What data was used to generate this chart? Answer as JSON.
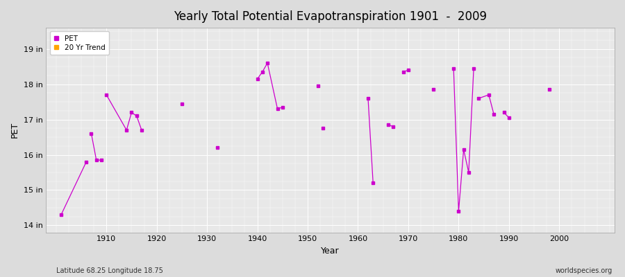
{
  "title": "Yearly Total Potential Evapotranspiration 1901  -  2009",
  "xlabel": "Year",
  "ylabel": "PET",
  "subtitle_left": "Latitude 68.25 Longitude 18.75",
  "subtitle_right": "worldspecies.org",
  "ylim": [
    13.8,
    19.6
  ],
  "xlim": [
    1898,
    2011
  ],
  "yticks": [
    14,
    15,
    16,
    17,
    18,
    19
  ],
  "ytick_labels": [
    "14 in",
    "15 in",
    "16 in",
    "17 in",
    "18 in",
    "19 in"
  ],
  "xticks": [
    1910,
    1920,
    1930,
    1940,
    1950,
    1960,
    1970,
    1980,
    1990,
    2000
  ],
  "pet_color": "#CC00CC",
  "trend_color": "#FFA500",
  "fig_bg_color": "#DCDCDC",
  "plot_bg_color": "#E8E8E8",
  "grid_major_color": "#FFFFFF",
  "grid_minor_color": "#FFFFFF",
  "pet_data": [
    [
      1901,
      14.3
    ],
    [
      1906,
      15.8
    ],
    [
      1907,
      16.6
    ],
    [
      1908,
      15.85
    ],
    [
      1909,
      15.85
    ],
    [
      1910,
      17.7
    ],
    [
      1914,
      16.7
    ],
    [
      1915,
      17.2
    ],
    [
      1916,
      17.1
    ],
    [
      1917,
      16.7
    ],
    [
      1925,
      17.45
    ],
    [
      1932,
      16.2
    ],
    [
      1940,
      18.15
    ],
    [
      1941,
      18.35
    ],
    [
      1942,
      18.6
    ],
    [
      1944,
      17.3
    ],
    [
      1945,
      17.35
    ],
    [
      1952,
      17.95
    ],
    [
      1953,
      16.75
    ],
    [
      1962,
      17.6
    ],
    [
      1963,
      15.2
    ],
    [
      1966,
      16.85
    ],
    [
      1967,
      16.8
    ],
    [
      1969,
      18.35
    ],
    [
      1970,
      18.4
    ],
    [
      1975,
      17.85
    ],
    [
      1979,
      18.45
    ],
    [
      1980,
      14.4
    ],
    [
      1981,
      16.15
    ],
    [
      1982,
      15.5
    ],
    [
      1983,
      18.45
    ],
    [
      1984,
      17.6
    ],
    [
      1986,
      17.7
    ],
    [
      1987,
      17.15
    ],
    [
      1989,
      17.2
    ],
    [
      1990,
      17.05
    ],
    [
      1998,
      17.85
    ]
  ],
  "connected_segments": [
    [
      [
        1901,
        14.3
      ],
      [
        1906,
        15.8
      ]
    ],
    [
      [
        1907,
        16.6
      ],
      [
        1908,
        15.85
      ],
      [
        1909,
        15.85
      ]
    ],
    [
      [
        1910,
        17.7
      ],
      [
        1914,
        16.7
      ],
      [
        1915,
        17.2
      ],
      [
        1916,
        17.1
      ],
      [
        1917,
        16.7
      ]
    ],
    [
      [
        1940,
        18.15
      ],
      [
        1941,
        18.35
      ],
      [
        1942,
        18.6
      ],
      [
        1944,
        17.3
      ],
      [
        1945,
        17.35
      ]
    ],
    [
      [
        1962,
        17.6
      ],
      [
        1963,
        15.2
      ]
    ],
    [
      [
        1966,
        16.85
      ],
      [
        1967,
        16.8
      ]
    ],
    [
      [
        1969,
        18.35
      ],
      [
        1970,
        18.4
      ]
    ],
    [
      [
        1979,
        18.45
      ],
      [
        1980,
        14.4
      ],
      [
        1981,
        16.15
      ],
      [
        1982,
        15.5
      ],
      [
        1983,
        18.45
      ]
    ],
    [
      [
        1984,
        17.6
      ],
      [
        1986,
        17.7
      ],
      [
        1987,
        17.15
      ]
    ],
    [
      [
        1989,
        17.2
      ],
      [
        1990,
        17.05
      ]
    ]
  ]
}
